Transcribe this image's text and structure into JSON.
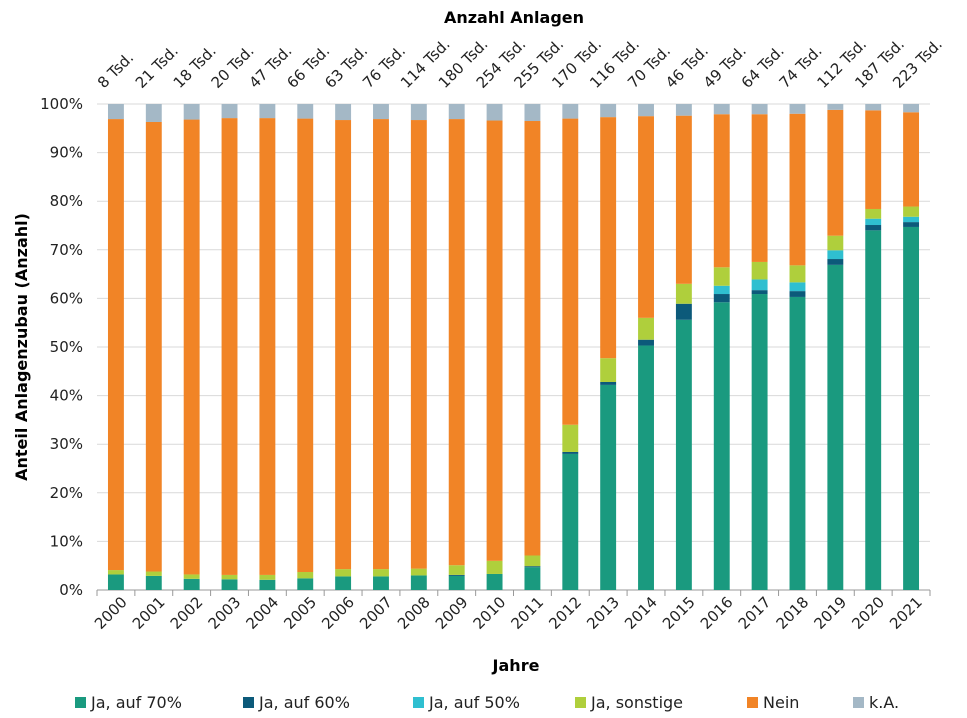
{
  "chart_data": {
    "type": "bar",
    "stacked": true,
    "title": "Anzahl Anlagen",
    "xlabel": "Jahre",
    "ylabel": "Anteil Anlagenzubau (Anzahl)",
    "ylim": [
      0,
      100
    ],
    "yticks": [
      "0%",
      "10%",
      "20%",
      "30%",
      "40%",
      "50%",
      "60%",
      "70%",
      "80%",
      "90%",
      "100%"
    ],
    "grid": true,
    "legend_position": "bottom",
    "categories": [
      "2000",
      "2001",
      "2002",
      "2003",
      "2004",
      "2005",
      "2006",
      "2007",
      "2008",
      "2009",
      "2010",
      "2011",
      "2012",
      "2013",
      "2014",
      "2015",
      "2016",
      "2017",
      "2018",
      "2019",
      "2020",
      "2021"
    ],
    "top_labels": [
      "8 Tsd.",
      "21 Tsd.",
      "18 Tsd.",
      "20 Tsd.",
      "47 Tsd.",
      "66 Tsd.",
      "63 Tsd.",
      "76 Tsd.",
      "114 Tsd.",
      "180 Tsd.",
      "254 Tsd.",
      "255 Tsd.",
      "170 Tsd.",
      "116 Tsd.",
      "70 Tsd.",
      "46 Tsd.",
      "49 Tsd.",
      "64 Tsd.",
      "74 Tsd.",
      "112 Tsd.",
      "187 Tsd.",
      "223 Tsd."
    ],
    "series": [
      {
        "name": "Ja, auf 70%",
        "color": "#1a9a7f",
        "values": [
          3.2,
          2.9,
          2.3,
          2.2,
          2.1,
          2.4,
          2.8,
          2.8,
          3.0,
          2.9,
          3.3,
          4.7,
          28.0,
          42.2,
          50.3,
          55.6,
          59.2,
          60.9,
          60.3,
          66.9,
          74.0,
          74.7
        ]
      },
      {
        "name": "Ja, auf 60%",
        "color": "#0c5a7a",
        "values": [
          0.0,
          0.0,
          0.0,
          0.0,
          0.0,
          0.0,
          0.0,
          0.0,
          0.0,
          0.2,
          0.0,
          0.2,
          0.4,
          0.6,
          1.2,
          3.3,
          1.7,
          0.8,
          1.2,
          1.2,
          1.1,
          1.0
        ]
      },
      {
        "name": "Ja, auf 50%",
        "color": "#2fbfd0",
        "values": [
          0.0,
          0.0,
          0.0,
          0.0,
          0.0,
          0.0,
          0.0,
          0.0,
          0.0,
          0.0,
          0.0,
          0.0,
          0.0,
          0.0,
          0.0,
          0.0,
          1.7,
          2.2,
          1.8,
          1.8,
          1.3,
          1.1
        ]
      },
      {
        "name": "Ja, sonstige",
        "color": "#afcf3c",
        "values": [
          0.9,
          0.9,
          0.9,
          0.9,
          1.0,
          1.3,
          1.5,
          1.5,
          1.4,
          2.0,
          2.7,
          2.2,
          5.6,
          4.9,
          4.5,
          4.1,
          3.8,
          3.6,
          3.5,
          3.0,
          2.0,
          2.1
        ]
      },
      {
        "name": "Nein",
        "color": "#f18426",
        "values": [
          92.8,
          92.5,
          93.6,
          94.0,
          94.0,
          93.3,
          92.4,
          92.6,
          92.3,
          91.8,
          90.6,
          89.4,
          63.0,
          49.6,
          41.5,
          34.6,
          31.5,
          30.4,
          31.2,
          25.9,
          20.3,
          19.4
        ]
      },
      {
        "name": "k.A.",
        "color": "#a4b8c6",
        "values": [
          3.1,
          3.7,
          3.2,
          2.9,
          2.9,
          3.0,
          3.3,
          3.1,
          3.3,
          3.1,
          3.4,
          3.5,
          3.0,
          2.7,
          2.5,
          2.4,
          2.1,
          2.1,
          2.0,
          1.2,
          1.3,
          1.7
        ]
      }
    ]
  }
}
